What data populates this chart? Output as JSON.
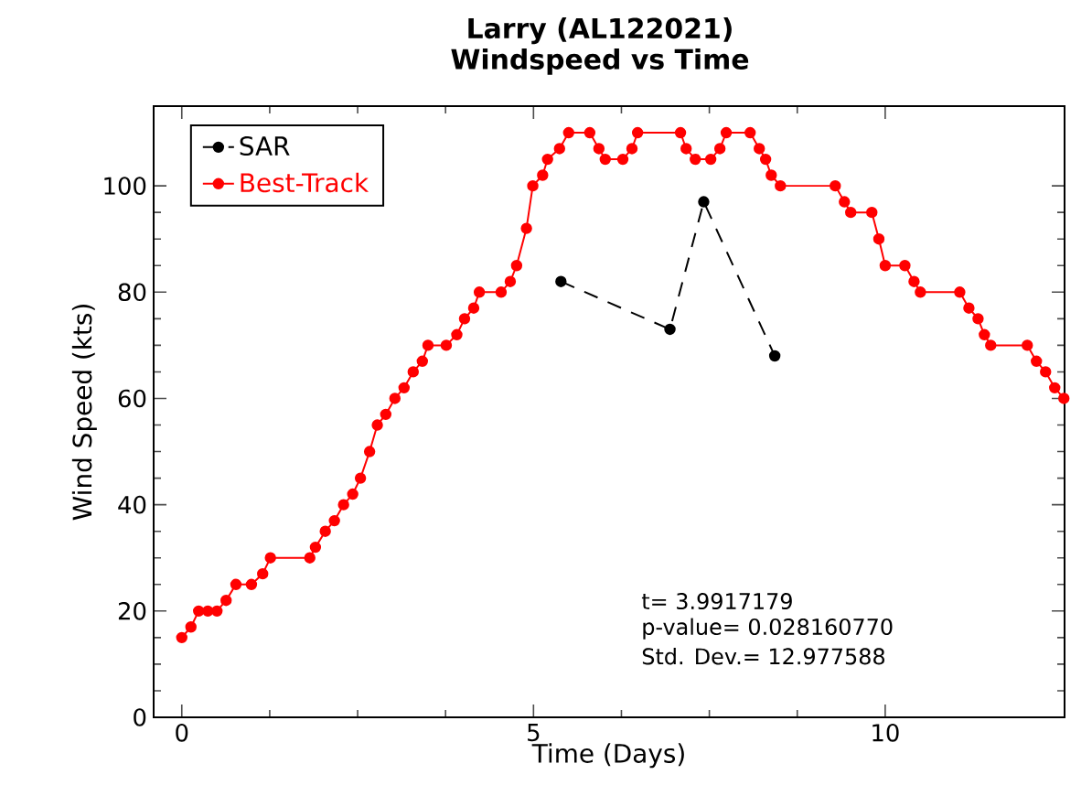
{
  "chart_data": {
    "type": "line",
    "title": "Larry (AL122021)",
    "subtitle": "Windspeed vs Time",
    "xlabel": "Time (Days)",
    "ylabel": "Wind Speed (kts)",
    "xlim": [
      -0.4,
      12.55
    ],
    "ylim": [
      0,
      115
    ],
    "xticks": [
      0,
      5,
      10
    ],
    "yticks": [
      0,
      20,
      40,
      60,
      80,
      100
    ],
    "legend": "top left",
    "marker": "circle",
    "series": [
      {
        "name": "SAR",
        "color": "#000000",
        "line_style": "dashed",
        "x": [
          5.39,
          6.94,
          7.42,
          8.43
        ],
        "values": [
          82,
          73,
          97,
          68
        ]
      },
      {
        "name": "Best-Track",
        "color": "#ff0000",
        "line_style": "solid",
        "x": [
          0,
          0.13,
          0.24,
          0.37,
          0.5,
          0.63,
          0.77,
          0.99,
          1.15,
          1.26,
          1.82,
          1.9,
          2.04,
          2.17,
          2.3,
          2.43,
          2.54,
          2.67,
          2.78,
          2.9,
          3.03,
          3.16,
          3.29,
          3.42,
          3.5,
          3.76,
          3.91,
          4.02,
          4.15,
          4.23,
          4.54,
          4.67,
          4.76,
          4.9,
          4.99,
          5.13,
          5.2,
          5.37,
          5.5,
          5.8,
          5.93,
          6.02,
          6.27,
          6.4,
          6.48,
          7.09,
          7.17,
          7.3,
          7.52,
          7.65,
          7.74,
          8.08,
          8.21,
          8.3,
          8.38,
          8.51,
          9.29,
          9.42,
          9.51,
          9.81,
          9.91,
          10.0,
          10.28,
          10.41,
          10.5,
          11.06,
          11.19,
          11.32,
          11.41,
          11.5,
          12.02,
          12.15,
          12.28,
          12.41,
          12.54
        ],
        "values": [
          15,
          17,
          20,
          20,
          20,
          22,
          25,
          25,
          27,
          30,
          30,
          32,
          35,
          37,
          40,
          42,
          45,
          50,
          55,
          57,
          60,
          62,
          65,
          67,
          70,
          70,
          72,
          75,
          77,
          80,
          80,
          82,
          85,
          92,
          100,
          102,
          105,
          107,
          110,
          110,
          107,
          105,
          105,
          107,
          110,
          110,
          107,
          105,
          105,
          107,
          110,
          110,
          107,
          105,
          102,
          100,
          100,
          97,
          95,
          95,
          90,
          85,
          85,
          82,
          80,
          80,
          77,
          75,
          72,
          70,
          70,
          67,
          65,
          62,
          60
        ]
      }
    ],
    "annotations": [
      "t= 3.9917179",
      "p-value= 0.028160770",
      "Std. Dev.= 12.977588"
    ]
  }
}
